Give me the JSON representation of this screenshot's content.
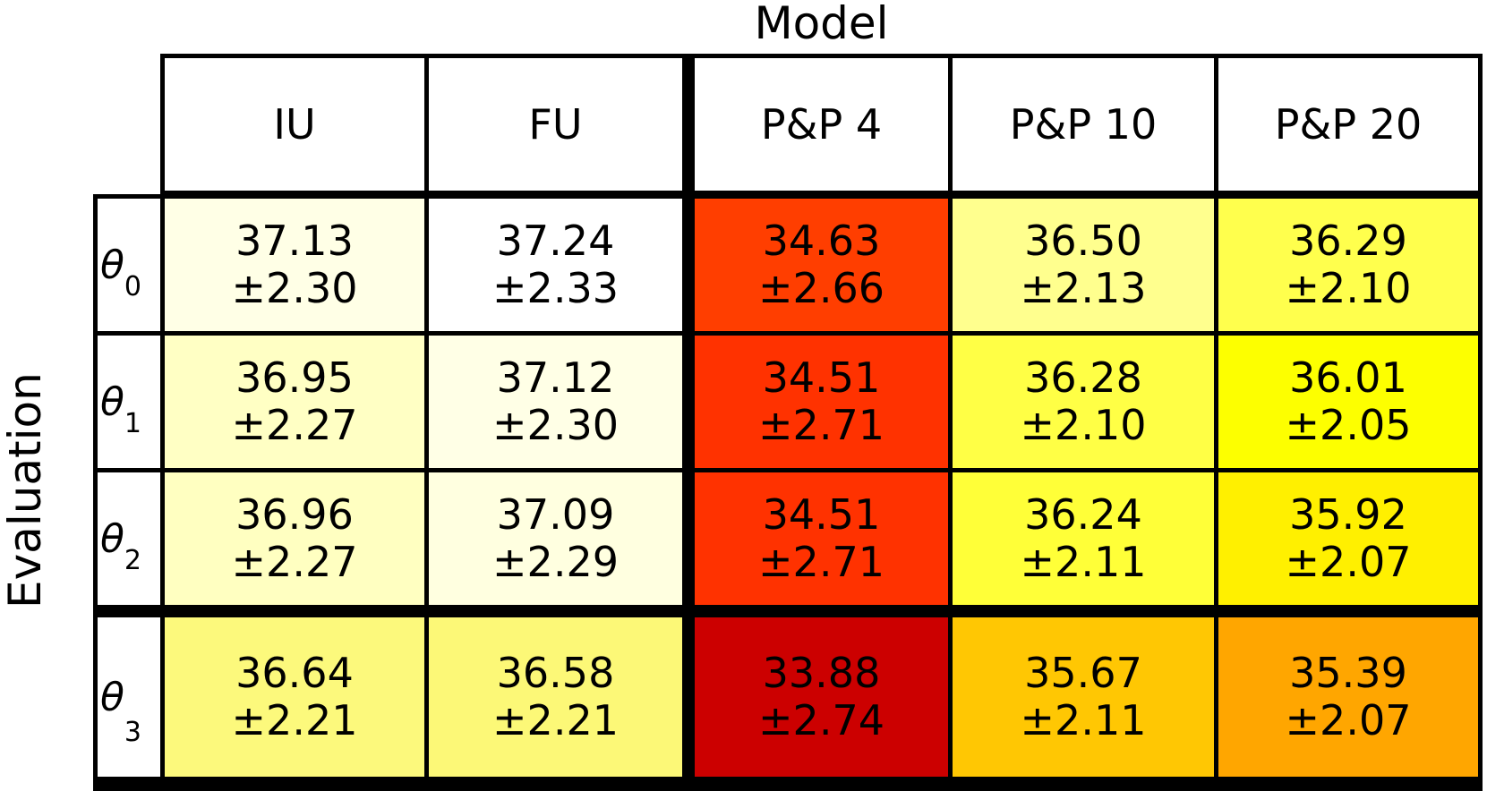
{
  "col_axis_title": "Model",
  "row_axis_title": "Evaluation",
  "columns": [
    "IU",
    "FU",
    "P&P 4",
    "P&P 10",
    "P&P 20"
  ],
  "rows": [
    {
      "label": {
        "base": "θ",
        "sub": "0"
      },
      "cells": [
        {
          "value": "37.13",
          "err": "±2.30",
          "bg": "#FFFFE6"
        },
        {
          "value": "37.24",
          "err": "±2.33",
          "bg": "#FFFFFF"
        },
        {
          "value": "34.63",
          "err": "±2.66",
          "bg": "#FF3E00"
        },
        {
          "value": "36.50",
          "err": "±2.13",
          "bg": "#FFFF8E"
        },
        {
          "value": "36.29",
          "err": "±2.10",
          "bg": "#FFFF4D"
        }
      ]
    },
    {
      "label": {
        "base": "θ",
        "sub": "1"
      },
      "cells": [
        {
          "value": "36.95",
          "err": "±2.27",
          "bg": "#FFFFC4"
        },
        {
          "value": "37.12",
          "err": "±2.30",
          "bg": "#FFFFE6"
        },
        {
          "value": "34.51",
          "err": "±2.71",
          "bg": "#FF3200"
        },
        {
          "value": "36.28",
          "err": "±2.10",
          "bg": "#FFFF45"
        },
        {
          "value": "36.01",
          "err": "±2.05",
          "bg": "#FDFF00"
        }
      ]
    },
    {
      "label": {
        "base": "θ",
        "sub": "2"
      },
      "cells": [
        {
          "value": "36.96",
          "err": "±2.27",
          "bg": "#FFFFC1"
        },
        {
          "value": "37.09",
          "err": "±2.29",
          "bg": "#FFFFE0"
        },
        {
          "value": "34.51",
          "err": "±2.71",
          "bg": "#FF3200"
        },
        {
          "value": "36.24",
          "err": "±2.11",
          "bg": "#FFFF38"
        },
        {
          "value": "35.92",
          "err": "±2.07",
          "bg": "#FFF000"
        }
      ]
    },
    {
      "label": {
        "base": "θ",
        "sub": "3"
      },
      "cells": [
        {
          "value": "36.64",
          "err": "±2.21",
          "bg": "#FCF97C"
        },
        {
          "value": "36.58",
          "err": "±2.21",
          "bg": "#FCF877"
        },
        {
          "value": "33.88",
          "err": "±2.74",
          "bg": "#CC0000"
        },
        {
          "value": "35.67",
          "err": "±2.11",
          "bg": "#FFC703"
        },
        {
          "value": "35.39",
          "err": "±2.07",
          "bg": "#FFA600"
        }
      ]
    }
  ],
  "border_color": "#000000",
  "chart_data": {
    "type": "heatmap",
    "title": "Model",
    "row_axis_label": "Evaluation",
    "columns": [
      "IU",
      "FU",
      "P&P 4",
      "P&P 10",
      "P&P 20"
    ],
    "row_labels": [
      "θ0",
      "θ1",
      "θ2",
      "θ3"
    ],
    "values": [
      [
        37.13,
        37.24,
        34.63,
        36.5,
        36.29
      ],
      [
        36.95,
        37.12,
        34.51,
        36.28,
        36.01
      ],
      [
        36.96,
        37.09,
        34.51,
        36.24,
        35.92
      ],
      [
        36.64,
        36.58,
        33.88,
        35.67,
        35.39
      ]
    ],
    "errors": [
      [
        2.3,
        2.33,
        2.66,
        2.13,
        2.1
      ],
      [
        2.27,
        2.3,
        2.71,
        2.1,
        2.05
      ],
      [
        2.27,
        2.29,
        2.71,
        2.11,
        2.07
      ],
      [
        2.21,
        2.21,
        2.74,
        2.11,
        2.07
      ]
    ],
    "colormap": "white(high) → yellow → orange → red(low)",
    "value_range_hint": [
      33.88,
      37.24
    ],
    "thick_divider_after_column": "FU",
    "thick_divider_after_row": "θ2",
    "legend": "off",
    "grid": "cell borders on"
  }
}
